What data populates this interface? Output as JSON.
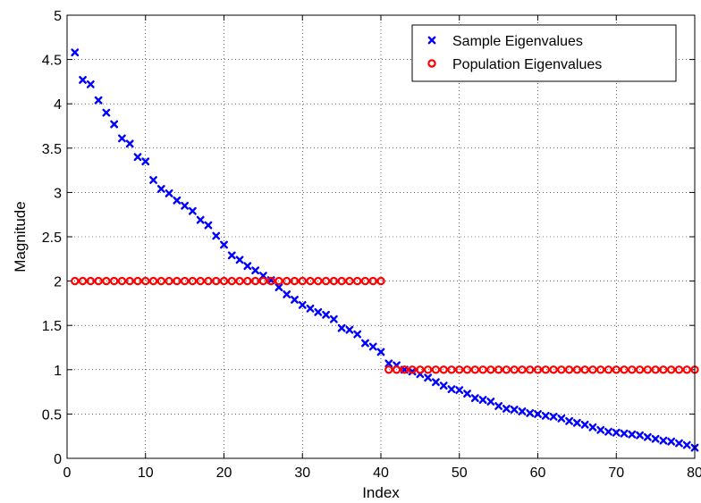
{
  "chart_data": {
    "type": "scatter",
    "title": "",
    "xlabel": "Index",
    "ylabel": "Magnitude",
    "xlim": [
      0,
      80
    ],
    "ylim": [
      0,
      5
    ],
    "xticks": [
      "0",
      "10",
      "20",
      "30",
      "40",
      "50",
      "60",
      "70",
      "80"
    ],
    "yticks": [
      "0",
      "0.5",
      "1",
      "1.5",
      "2",
      "2.5",
      "3",
      "3.5",
      "4",
      "4.5",
      "5"
    ],
    "grid": true,
    "legend_position": "top-right",
    "series": [
      {
        "name": "Sample Eigenvalues",
        "marker": "x",
        "color": "#0000ff",
        "x": [
          1,
          2,
          3,
          4,
          5,
          6,
          7,
          8,
          9,
          10,
          11,
          12,
          13,
          14,
          15,
          16,
          17,
          18,
          19,
          20,
          21,
          22,
          23,
          24,
          25,
          26,
          27,
          28,
          29,
          30,
          31,
          32,
          33,
          34,
          35,
          36,
          37,
          38,
          39,
          40,
          41,
          42,
          43,
          44,
          45,
          46,
          47,
          48,
          49,
          50,
          51,
          52,
          53,
          54,
          55,
          56,
          57,
          58,
          59,
          60,
          61,
          62,
          63,
          64,
          65,
          66,
          67,
          68,
          69,
          70,
          71,
          72,
          73,
          74,
          75,
          76,
          77,
          78,
          79,
          80
        ],
        "y": [
          4.58,
          4.27,
          4.22,
          4.04,
          3.9,
          3.77,
          3.61,
          3.55,
          3.4,
          3.35,
          3.14,
          3.04,
          2.99,
          2.91,
          2.85,
          2.79,
          2.69,
          2.63,
          2.51,
          2.41,
          2.29,
          2.24,
          2.17,
          2.12,
          2.06,
          2.01,
          1.93,
          1.85,
          1.79,
          1.73,
          1.69,
          1.65,
          1.62,
          1.57,
          1.47,
          1.45,
          1.4,
          1.3,
          1.26,
          1.2,
          1.07,
          1.05,
          1.0,
          0.98,
          0.95,
          0.91,
          0.86,
          0.82,
          0.78,
          0.77,
          0.73,
          0.68,
          0.66,
          0.64,
          0.59,
          0.56,
          0.55,
          0.53,
          0.51,
          0.5,
          0.48,
          0.47,
          0.45,
          0.42,
          0.4,
          0.38,
          0.35,
          0.32,
          0.3,
          0.29,
          0.28,
          0.27,
          0.26,
          0.24,
          0.22,
          0.2,
          0.19,
          0.17,
          0.15,
          0.12
        ]
      },
      {
        "name": "Population Eigenvalues",
        "marker": "o",
        "color": "#ff0000",
        "x": [
          1,
          2,
          3,
          4,
          5,
          6,
          7,
          8,
          9,
          10,
          11,
          12,
          13,
          14,
          15,
          16,
          17,
          18,
          19,
          20,
          21,
          22,
          23,
          24,
          25,
          26,
          27,
          28,
          29,
          30,
          31,
          32,
          33,
          34,
          35,
          36,
          37,
          38,
          39,
          40,
          41,
          42,
          43,
          44,
          45,
          46,
          47,
          48,
          49,
          50,
          51,
          52,
          53,
          54,
          55,
          56,
          57,
          58,
          59,
          60,
          61,
          62,
          63,
          64,
          65,
          66,
          67,
          68,
          69,
          70,
          71,
          72,
          73,
          74,
          75,
          76,
          77,
          78,
          79,
          80
        ],
        "y": [
          2,
          2,
          2,
          2,
          2,
          2,
          2,
          2,
          2,
          2,
          2,
          2,
          2,
          2,
          2,
          2,
          2,
          2,
          2,
          2,
          2,
          2,
          2,
          2,
          2,
          2,
          2,
          2,
          2,
          2,
          2,
          2,
          2,
          2,
          2,
          2,
          2,
          2,
          2,
          2,
          1,
          1,
          1,
          1,
          1,
          1,
          1,
          1,
          1,
          1,
          1,
          1,
          1,
          1,
          1,
          1,
          1,
          1,
          1,
          1,
          1,
          1,
          1,
          1,
          1,
          1,
          1,
          1,
          1,
          1,
          1,
          1,
          1,
          1,
          1,
          1,
          1,
          1,
          1,
          1
        ]
      }
    ]
  }
}
